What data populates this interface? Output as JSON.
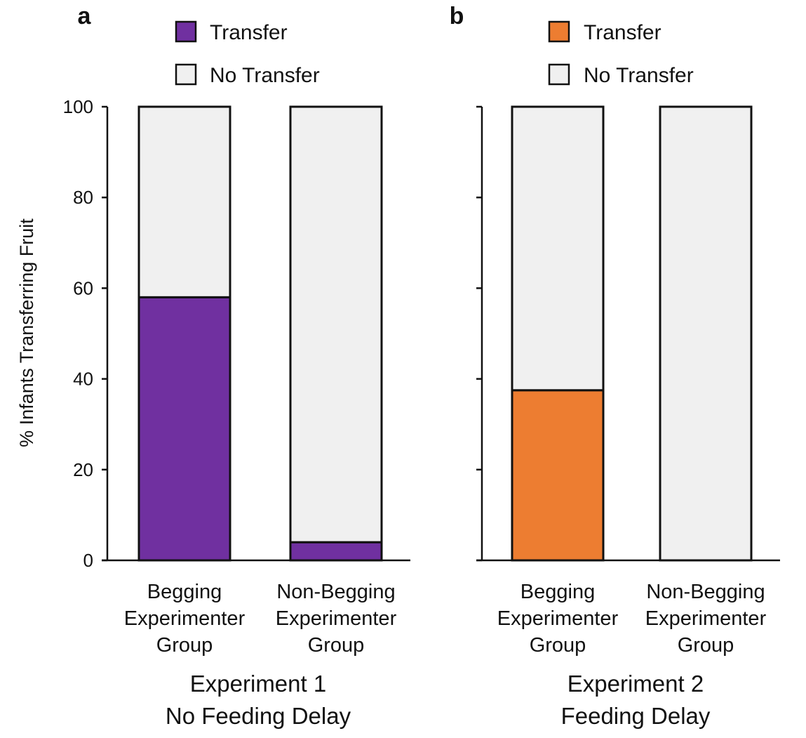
{
  "chart_data": [
    {
      "panel": "a",
      "type": "bar",
      "stacked": true,
      "categories": [
        [
          "Begging",
          "Experimenter",
          "Group"
        ],
        [
          "Non-Begging",
          "Experimenter",
          "Group"
        ]
      ],
      "series": [
        {
          "name": "Transfer",
          "values": [
            58,
            4
          ],
          "color": "#7030a0"
        },
        {
          "name": "No Transfer",
          "values": [
            42,
            96
          ],
          "color": "#f0f0f0"
        }
      ],
      "xlabel": [
        "Experiment 1",
        "No Feeding Delay"
      ],
      "ylabel": "% Infants Transferring Fruit",
      "ylim": [
        0,
        100
      ],
      "yticks": [
        0,
        20,
        40,
        60,
        80,
        100
      ],
      "legend_position": "top",
      "grid": false
    },
    {
      "panel": "b",
      "type": "bar",
      "stacked": true,
      "categories": [
        [
          "Begging",
          "Experimenter",
          "Group"
        ],
        [
          "Non-Begging",
          "Experimenter",
          "Group"
        ]
      ],
      "series": [
        {
          "name": "Transfer",
          "values": [
            37.5,
            0
          ],
          "color": "#ed7d31"
        },
        {
          "name": "No Transfer",
          "values": [
            62.5,
            100
          ],
          "color": "#f0f0f0"
        }
      ],
      "xlabel": [
        "Experiment 2",
        "Feeding Delay"
      ],
      "ylabel": "",
      "ylim": [
        0,
        100
      ],
      "yticks": [
        0,
        20,
        40,
        60,
        80,
        100
      ],
      "legend_position": "top",
      "grid": false
    }
  ]
}
